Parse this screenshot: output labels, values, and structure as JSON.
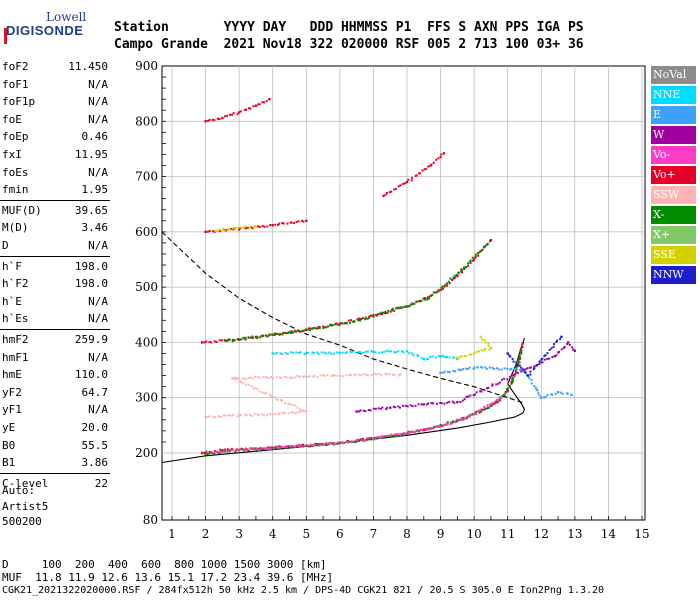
{
  "logo": {
    "line1": "Lowell",
    "line2": "DIGISONDE"
  },
  "header": {
    "line1": "Station       YYYY DAY   DDD HHMMSS P1  FFS S AXN PPS IGA PS",
    "line2": "Campo Grande  2021 Nov18 322 020000 RSF 005 2 713 100 03+ 36"
  },
  "params": {
    "group1": [
      {
        "k": "foF2",
        "v": "11.450"
      },
      {
        "k": "foF1",
        "v": "N/A"
      },
      {
        "k": "foF1p",
        "v": "N/A"
      },
      {
        "k": "foE",
        "v": "N/A"
      },
      {
        "k": "foEp",
        "v": "0.46"
      },
      {
        "k": "fxI",
        "v": "11.95"
      },
      {
        "k": "foEs",
        "v": "N/A"
      },
      {
        "k": "fmin",
        "v": "1.95"
      }
    ],
    "group2": [
      {
        "k": "MUF(D)",
        "v": "39.65"
      },
      {
        "k": "M(D)",
        "v": "3.46"
      },
      {
        "k": "D",
        "v": "N/A"
      }
    ],
    "group3": [
      {
        "k": "h`F",
        "v": "198.0"
      },
      {
        "k": "h`F2",
        "v": "198.0"
      },
      {
        "k": "h`E",
        "v": "N/A"
      },
      {
        "k": "h`Es",
        "v": "N/A"
      }
    ],
    "group4": [
      {
        "k": "hmF2",
        "v": "259.9"
      },
      {
        "k": "hmF1",
        "v": "N/A"
      },
      {
        "k": "hmE",
        "v": "110.0"
      },
      {
        "k": "yF2",
        "v": "64.7"
      },
      {
        "k": "yF1",
        "v": "N/A"
      },
      {
        "k": "yE",
        "v": "20.0"
      },
      {
        "k": "B0",
        "v": "55.5"
      },
      {
        "k": "B1",
        "v": "3.86"
      }
    ],
    "group5": [
      {
        "k": "C-level",
        "v": "22"
      }
    ]
  },
  "auto": {
    "line1": "Auto:",
    "line2": "Artist5",
    "line3": "500200"
  },
  "legend": [
    {
      "label": "NoVal",
      "color": "#8c8c8c"
    },
    {
      "label": "NNE",
      "color": "#00dcff"
    },
    {
      "label": "E",
      "color": "#3ca0ff"
    },
    {
      "label": "W",
      "color": "#a000a0"
    },
    {
      "label": "Vo-",
      "color": "#ff3cc8"
    },
    {
      "label": "Vo+",
      "color": "#e60028"
    },
    {
      "label": "SSW",
      "color": "#ffb4b4"
    },
    {
      "label": "X-",
      "color": "#008c00"
    },
    {
      "label": "X+",
      "color": "#82c864"
    },
    {
      "label": "SSE",
      "color": "#d2d200"
    },
    {
      "label": "NNW",
      "color": "#1e1ecd"
    }
  ],
  "bottom": {
    "line1": "D     100  200  400  600  800 1000 1500 3000 [km]",
    "line2": "MUF  11.8 11.9 12.6 13.6 15.1 17.2 23.4 39.6 [MHz]",
    "line3": "CGK21_2021322020000.RSF / 284fx512h 50 kHz 2.5 km / DPS-4D CGK21 821 / 20.5 S 305.0 E Ion2Png 1.3.20"
  },
  "chart_data": {
    "type": "scatter",
    "xlim": [
      0.7,
      15
    ],
    "ylim": [
      80,
      900
    ],
    "xticks": [
      1,
      2,
      3,
      4,
      5,
      6,
      7,
      8,
      9,
      10,
      11,
      12,
      13,
      14,
      15
    ],
    "yticks": [
      80,
      200,
      300,
      400,
      500,
      600,
      700,
      800,
      900
    ],
    "grid": true,
    "series": [
      {
        "color": "#e60028",
        "values": [
          [
            1.9,
            200
          ],
          [
            2.5,
            205
          ],
          [
            3.5,
            208
          ],
          [
            4.5,
            212
          ],
          [
            5.5,
            216
          ],
          [
            6.5,
            222
          ],
          [
            7.5,
            230
          ],
          [
            8.5,
            242
          ],
          [
            9.5,
            258
          ],
          [
            10.2,
            275
          ],
          [
            10.7,
            292
          ],
          [
            11.0,
            312
          ],
          [
            11.2,
            340
          ],
          [
            11.35,
            370
          ],
          [
            11.45,
            398
          ]
        ]
      },
      {
        "color": "#008c00",
        "values": [
          [
            2.0,
            198
          ],
          [
            3.0,
            205
          ],
          [
            4.0,
            209
          ],
          [
            5.0,
            213
          ],
          [
            6.0,
            218
          ],
          [
            7.0,
            225
          ],
          [
            8.0,
            235
          ],
          [
            9.0,
            250
          ],
          [
            9.8,
            265
          ],
          [
            10.5,
            285
          ],
          [
            10.9,
            305
          ],
          [
            11.15,
            330
          ],
          [
            11.3,
            360
          ],
          [
            11.4,
            385
          ]
        ]
      },
      {
        "color": "#ff3cc8",
        "values": [
          [
            2.2,
            201
          ],
          [
            3.2,
            206
          ],
          [
            4.2,
            210
          ],
          [
            5.2,
            214
          ],
          [
            6.2,
            220
          ],
          [
            7.2,
            228
          ],
          [
            8.2,
            238
          ],
          [
            9.2,
            252
          ],
          [
            10.0,
            270
          ],
          [
            10.8,
            300
          ]
        ]
      },
      {
        "color": "#e60028",
        "values": [
          [
            1.9,
            400
          ],
          [
            3.0,
            405
          ],
          [
            4.0,
            414
          ],
          [
            5.0,
            423
          ],
          [
            6.0,
            434
          ],
          [
            7.0,
            447
          ],
          [
            8.0,
            465
          ],
          [
            9.0,
            495
          ],
          [
            9.5,
            520
          ],
          [
            10.0,
            550
          ],
          [
            10.5,
            585
          ]
        ]
      },
      {
        "color": "#008c00",
        "values": [
          [
            2.6,
            403
          ],
          [
            4.6,
            418
          ],
          [
            6.6,
            440
          ],
          [
            8.6,
            478
          ],
          [
            9.7,
            535
          ],
          [
            10.4,
            578
          ]
        ]
      },
      {
        "color": "#e60028",
        "values": [
          [
            2.0,
            600
          ],
          [
            2.6,
            603
          ],
          [
            3.2,
            607
          ],
          [
            4.0,
            612
          ],
          [
            5.0,
            620
          ]
        ]
      },
      {
        "color": "#d2d200",
        "values": [
          [
            2.3,
            602
          ],
          [
            2.9,
            606
          ],
          [
            3.5,
            609
          ]
        ]
      },
      {
        "color": "#e60028",
        "values": [
          [
            7.3,
            665
          ],
          [
            8.0,
            690
          ],
          [
            8.7,
            720
          ],
          [
            9.1,
            742
          ]
        ]
      },
      {
        "color": "#e60028",
        "values": [
          [
            2.0,
            800
          ],
          [
            2.5,
            806
          ],
          [
            3.0,
            816
          ],
          [
            3.5,
            828
          ],
          [
            3.9,
            840
          ]
        ]
      },
      {
        "color": "#00dcff",
        "values": [
          [
            4.0,
            380
          ],
          [
            5.0,
            381
          ],
          [
            6.0,
            381
          ],
          [
            7.0,
            383
          ],
          [
            8.0,
            384
          ],
          [
            8.5,
            370
          ],
          [
            9.0,
            375
          ],
          [
            9.5,
            370
          ]
        ]
      },
      {
        "color": "#3ca0ff",
        "values": [
          [
            9.0,
            345
          ],
          [
            9.6,
            350
          ],
          [
            10.1,
            355
          ],
          [
            11.5,
            350
          ],
          [
            12.0,
            300
          ],
          [
            12.5,
            310
          ],
          [
            12.9,
            305
          ]
        ]
      },
      {
        "color": "#ffb4b4",
        "values": [
          [
            2.0,
            265
          ],
          [
            3.0,
            268
          ],
          [
            4.0,
            270
          ],
          [
            5.0,
            275
          ],
          [
            2.8,
            335
          ],
          [
            3.8,
            337
          ],
          [
            4.8,
            338
          ],
          [
            5.8,
            340
          ],
          [
            6.8,
            341
          ],
          [
            7.8,
            342
          ]
        ]
      },
      {
        "color": "#a000a0",
        "values": [
          [
            6.5,
            275
          ],
          [
            7.5,
            282
          ],
          [
            8.5,
            288
          ],
          [
            9.5,
            292
          ],
          [
            12.4,
            375
          ],
          [
            12.8,
            400
          ],
          [
            13.0,
            385
          ]
        ]
      },
      {
        "color": "#d2d200",
        "values": [
          [
            9.5,
            372
          ],
          [
            10.0,
            380
          ],
          [
            10.5,
            390
          ],
          [
            10.2,
            410
          ]
        ]
      },
      {
        "color": "#1e1ecd",
        "values": [
          [
            11.0,
            380
          ],
          [
            11.6,
            340
          ],
          [
            12.6,
            410
          ]
        ]
      }
    ],
    "model_curves": [
      {
        "style": "solid",
        "color": "#000000",
        "values": [
          [
            0.7,
            183
          ],
          [
            2.0,
            195
          ],
          [
            4.0,
            206
          ],
          [
            6.0,
            218
          ],
          [
            8.0,
            232
          ],
          [
            9.5,
            245
          ],
          [
            10.5,
            256
          ],
          [
            11.2,
            265
          ],
          [
            11.45,
            272
          ],
          [
            11.5,
            279
          ],
          [
            11.4,
            290
          ],
          [
            11.2,
            307
          ],
          [
            11.0,
            325
          ]
        ]
      },
      {
        "style": "solid",
        "color": "#000000",
        "values": [
          [
            11.0,
            325
          ],
          [
            11.25,
            360
          ],
          [
            11.4,
            390
          ],
          [
            11.5,
            408
          ]
        ]
      },
      {
        "style": "dashed",
        "color": "#000000",
        "values": [
          [
            0.7,
            600
          ],
          [
            2.0,
            525
          ],
          [
            3.0,
            480
          ],
          [
            4.0,
            445
          ],
          [
            5.0,
            415
          ],
          [
            6.0,
            395
          ],
          [
            7.0,
            370
          ],
          [
            8.0,
            352
          ],
          [
            9.0,
            335
          ],
          [
            10.0,
            320
          ],
          [
            11.0,
            300
          ],
          [
            11.5,
            290
          ]
        ]
      }
    ]
  }
}
